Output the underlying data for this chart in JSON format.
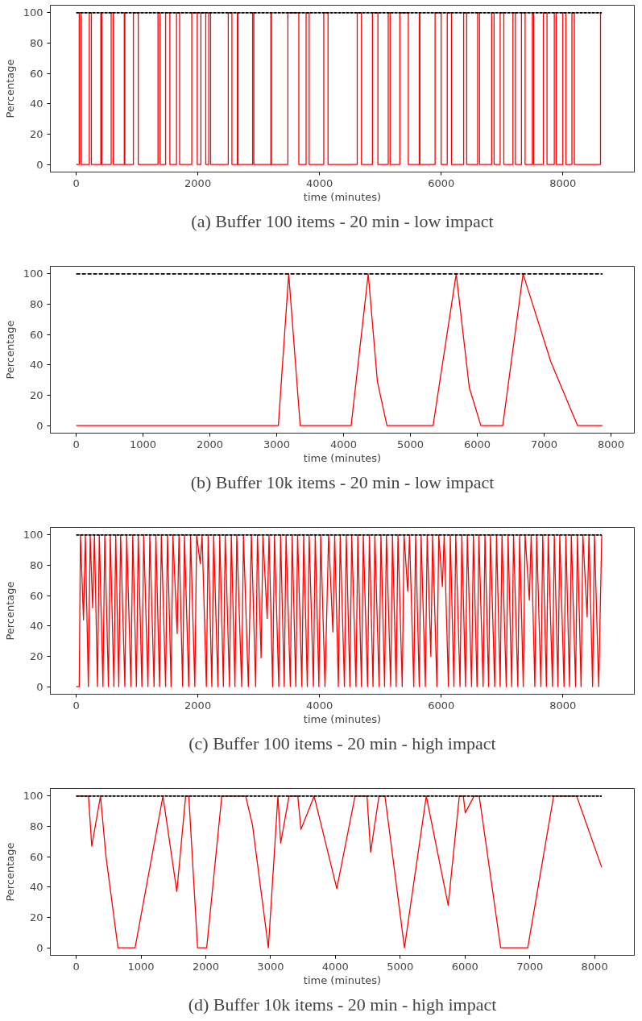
{
  "chart_data": [
    {
      "type": "line",
      "title": "(a) Buffer 100 items - 20 min - low impact",
      "xlabel": "time (minutes)",
      "ylabel": "Percentage",
      "xlim": [
        -425,
        9176
      ],
      "ylim": [
        -5,
        105
      ],
      "xticks": [
        0,
        2000,
        4000,
        6000,
        8000
      ],
      "yticks": [
        0,
        20,
        40,
        60,
        80,
        100
      ],
      "grid": false,
      "x": [
        0,
        50,
        50,
        80,
        80,
        215,
        215,
        250,
        250,
        405,
        405,
        420,
        420,
        575,
        575,
        610,
        610,
        790,
        790,
        800,
        800,
        940,
        940,
        1020,
        1020,
        1345,
        1345,
        1380,
        1380,
        1470,
        1470,
        1540,
        1540,
        1650,
        1650,
        1700,
        1700,
        1900,
        1900,
        1990,
        1990,
        2050,
        2050,
        2130,
        2130,
        2180,
        2180,
        2210,
        2210,
        2500,
        2500,
        2560,
        2560,
        2650,
        2650,
        2660,
        2660,
        2900,
        2900,
        2920,
        2920,
        3200,
        3200,
        3210,
        3210,
        3480,
        3480,
        3660,
        3660,
        3780,
        3780,
        3830,
        3830,
        4070,
        4070,
        4140,
        4140,
        4620,
        4620,
        4690,
        4690,
        4870,
        4870,
        4960,
        4960,
        5130,
        5130,
        5160,
        5160,
        5320,
        5320,
        5460,
        5460,
        5640,
        5640,
        5650,
        5650,
        5900,
        5900,
        6000,
        6000,
        6100,
        6100,
        6170,
        6170,
        6370,
        6370,
        6420,
        6420,
        6600,
        6600,
        6630,
        6630,
        6830,
        6830,
        6870,
        6870,
        6970,
        6970,
        7030,
        7030,
        7180,
        7180,
        7220,
        7220,
        7320,
        7320,
        7380,
        7380,
        7500,
        7500,
        7520,
        7520,
        7680,
        7680,
        7740,
        7740,
        7860,
        7860,
        7890,
        7890,
        8000,
        8000,
        8050,
        8050,
        8150,
        8150,
        8190,
        8190,
        8620,
        8620
      ],
      "series": [
        {
          "color": "#ff0000",
          "values": [
            0,
            0,
            100,
            100,
            0,
            0,
            100,
            100,
            0,
            0,
            100,
            100,
            0,
            0,
            100,
            100,
            0,
            0,
            100,
            100,
            0,
            0,
            100,
            100,
            0,
            0,
            100,
            100,
            0,
            0,
            100,
            100,
            0,
            0,
            100,
            100,
            0,
            0,
            100,
            100,
            0,
            0,
            100,
            100,
            0,
            0,
            100,
            100,
            0,
            0,
            100,
            100,
            0,
            0,
            100,
            100,
            0,
            0,
            100,
            100,
            0,
            0,
            100,
            100,
            0,
            0,
            100,
            100,
            0,
            0,
            100,
            100,
            0,
            0,
            100,
            100,
            0,
            0,
            100,
            100,
            0,
            0,
            100,
            100,
            0,
            0,
            100,
            100,
            0,
            0,
            100,
            100,
            0,
            0,
            100,
            100,
            0,
            0,
            100,
            100,
            0,
            0,
            100,
            100,
            0,
            0,
            100,
            100,
            0,
            0,
            100,
            100,
            0,
            0,
            100,
            100,
            0,
            0,
            100,
            100,
            0,
            0,
            100,
            100,
            0,
            0,
            100,
            100,
            0,
            0,
            100,
            100,
            0,
            0,
            100,
            100,
            0,
            0,
            100,
            100,
            0,
            0,
            100,
            100,
            0,
            0,
            100,
            100,
            0,
            0,
            100
          ]
        },
        {
          "color": "#000000",
          "line_style": "dashed",
          "x": [
            0,
            8640
          ],
          "values": [
            100,
            100
          ]
        }
      ]
    },
    {
      "type": "line",
      "title": "(b) Buffer 10k items - 20 min - low impact",
      "xlabel": "time (minutes)",
      "ylabel": "Percentage",
      "xlim": [
        -387,
        8350
      ],
      "ylim": [
        -5,
        105
      ],
      "xticks": [
        0,
        1000,
        2000,
        3000,
        4000,
        5000,
        6000,
        7000,
        8000
      ],
      "yticks": [
        0,
        20,
        40,
        60,
        80,
        100
      ],
      "grid": false,
      "x": [
        0,
        3024,
        3179,
        3351,
        4113,
        4369,
        4506,
        4649,
        5339,
        5685,
        5881,
        6054,
        6381,
        6685,
        7101,
        7500,
        7875
      ],
      "series": [
        {
          "color": "#ff0000",
          "values": [
            0,
            0,
            100,
            0,
            0,
            100,
            29,
            0,
            0,
            100,
            25,
            0,
            0,
            100,
            42,
            0,
            0
          ]
        },
        {
          "color": "#000000",
          "line_style": "dashed",
          "x": [
            0,
            7875
          ],
          "values": [
            100,
            100
          ]
        }
      ]
    },
    {
      "type": "line",
      "title": "(c) Buffer 100 items - 20 min - high impact",
      "xlabel": "time (minutes)",
      "ylabel": "Percentage",
      "xlim": [
        -425,
        9176
      ],
      "ylim": [
        -5,
        105
      ],
      "xticks": [
        0,
        2000,
        4000,
        6000,
        8000
      ],
      "yticks": [
        0,
        20,
        40,
        60,
        80,
        100
      ],
      "grid": false,
      "x": [
        0,
        50,
        70,
        120,
        150,
        200,
        230,
        270,
        300,
        350,
        380,
        440,
        470,
        530,
        560,
        620,
        650,
        700,
        730,
        800,
        830,
        900,
        930,
        990,
        1020,
        1080,
        1110,
        1180,
        1210,
        1280,
        1310,
        1370,
        1400,
        1470,
        1500,
        1560,
        1590,
        1660,
        1690,
        1750,
        1780,
        1850,
        1880,
        1950,
        1980,
        2040,
        2070,
        2140,
        2170,
        2230,
        2260,
        2330,
        2360,
        2420,
        2450,
        2520,
        2550,
        2610,
        2640,
        2720,
        2750,
        2830,
        2880,
        2950,
        2980,
        3040,
        3070,
        3140,
        3170,
        3230,
        3260,
        3330,
        3360,
        3420,
        3450,
        3520,
        3550,
        3610,
        3640,
        3710,
        3740,
        3800,
        3830,
        3900,
        3930,
        3990,
        4020,
        4090,
        4150,
        4220,
        4250,
        4310,
        4340,
        4410,
        4440,
        4500,
        4530,
        4600,
        4630,
        4690,
        4720,
        4790,
        4820,
        4880,
        4910,
        4980,
        5010,
        5070,
        5100,
        5170,
        5200,
        5260,
        5290,
        5360,
        5390,
        5450,
        5480,
        5550,
        5580,
        5640,
        5670,
        5740,
        5770,
        5830,
        5860,
        5930,
        5960,
        6020,
        6050,
        6120,
        6150,
        6210,
        6240,
        6310,
        6340,
        6400,
        6430,
        6500,
        6530,
        6590,
        6620,
        6690,
        6720,
        6780,
        6810,
        6880,
        6910,
        6970,
        7000,
        7070,
        7100,
        7160,
        7190,
        7260,
        7290,
        7350,
        7380,
        7450,
        7480,
        7540,
        7570,
        7640,
        7670,
        7730,
        7760,
        7830,
        7860,
        7920,
        7950,
        8020,
        8050,
        8110,
        8140,
        8210,
        8240,
        8300,
        8330,
        8400,
        8430,
        8490,
        8520,
        8590,
        8640
      ],
      "series": [
        {
          "color": "#ff0000",
          "values": [
            0,
            0,
            100,
            44,
            100,
            0,
            100,
            52,
            100,
            0,
            100,
            0,
            100,
            0,
            100,
            0,
            100,
            0,
            100,
            0,
            100,
            0,
            100,
            0,
            100,
            0,
            100,
            0,
            100,
            0,
            100,
            0,
            100,
            0,
            100,
            0,
            100,
            35,
            100,
            0,
            100,
            0,
            100,
            0,
            100,
            81,
            100,
            0,
            100,
            0,
            100,
            0,
            100,
            0,
            100,
            0,
            100,
            0,
            100,
            0,
            100,
            0,
            100,
            0,
            100,
            19,
            100,
            45,
            100,
            0,
            100,
            0,
            100,
            0,
            100,
            0,
            100,
            0,
            100,
            0,
            100,
            0,
            100,
            0,
            100,
            0,
            100,
            0,
            100,
            36,
            100,
            0,
            100,
            0,
            100,
            0,
            100,
            0,
            100,
            0,
            100,
            0,
            100,
            0,
            100,
            0,
            100,
            0,
            100,
            0,
            100,
            0,
            100,
            0,
            100,
            63,
            100,
            0,
            100,
            0,
            100,
            0,
            100,
            20,
            100,
            0,
            100,
            66,
            100,
            0,
            100,
            0,
            100,
            0,
            100,
            0,
            100,
            0,
            100,
            0,
            100,
            0,
            100,
            0,
            100,
            0,
            100,
            0,
            100,
            0,
            100,
            0,
            100,
            0,
            100,
            0,
            100,
            57,
            100,
            0,
            100,
            0,
            100,
            0,
            100,
            0,
            100,
            0,
            100,
            0,
            100,
            0,
            100,
            0,
            100,
            0,
            100,
            46,
            100,
            0,
            100,
            0,
            100
          ]
        },
        {
          "color": "#000000",
          "line_style": "dashed",
          "x": [
            0,
            8640
          ],
          "values": [
            100,
            100
          ]
        }
      ]
    },
    {
      "type": "line",
      "title": "(d) Buffer 10k items - 20 min - high impact",
      "xlabel": "time (minutes)",
      "ylabel": "Percentage",
      "xlim": [
        -399,
        8614
      ],
      "ylim": [
        -5,
        105
      ],
      "xticks": [
        0,
        1000,
        2000,
        3000,
        4000,
        5000,
        6000,
        7000,
        8000
      ],
      "yticks": [
        0,
        20,
        40,
        60,
        80,
        100
      ],
      "grid": false,
      "x": [
        0,
        190,
        240,
        375,
        460,
        645,
        909,
        1339,
        1553,
        1689,
        1738,
        1873,
        2014,
        2247,
        2616,
        2720,
        2966,
        3113,
        3156,
        3285,
        3420,
        3469,
        3672,
        4022,
        4304,
        4488,
        4544,
        4673,
        4765,
        5066,
        5403,
        5741,
        5913,
        5974,
        6005,
        6140,
        6220,
        6551,
        6969,
        7368,
        7724,
        8111
      ],
      "series": [
        {
          "color": "#ff0000",
          "values": [
            100,
            100,
            67,
            100,
            60,
            0,
            0,
            100,
            37,
            100,
            100,
            0,
            0,
            100,
            100,
            81,
            0,
            100,
            69,
            100,
            100,
            78,
            100,
            39,
            100,
            100,
            63,
            100,
            100,
            0,
            100,
            28,
            100,
            100,
            89,
            100,
            100,
            0,
            0,
            100,
            100,
            53
          ]
        },
        {
          "color": "#000000",
          "line_style": "dashed",
          "x": [
            0,
            8111
          ],
          "values": [
            100,
            100
          ]
        }
      ]
    }
  ]
}
